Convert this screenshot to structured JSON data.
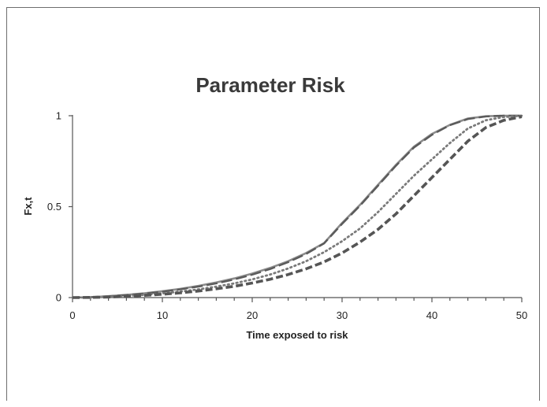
{
  "chart_data": {
    "type": "line",
    "title": "Parameter Risk",
    "xlabel": "Time exposed to risk",
    "ylabel": "Fx,t",
    "xlim": [
      0,
      50
    ],
    "ylim": [
      0,
      1
    ],
    "x_ticks": [
      "0",
      "10",
      "20",
      "30",
      "40",
      "50"
    ],
    "y_ticks": [
      "0",
      "0.5",
      "1"
    ],
    "grid": false,
    "legend": "none",
    "x": [
      0,
      2,
      4,
      6,
      8,
      10,
      12,
      14,
      16,
      18,
      20,
      22,
      24,
      26,
      28,
      30,
      32,
      34,
      36,
      38,
      40,
      42,
      44,
      46,
      48,
      50
    ],
    "series": [
      {
        "style": "solid",
        "color": "#8c8c8c",
        "values": [
          0.0,
          0.002,
          0.008,
          0.015,
          0.024,
          0.035,
          0.048,
          0.064,
          0.083,
          0.105,
          0.132,
          0.163,
          0.2,
          0.245,
          0.3,
          0.41,
          0.51,
          0.62,
          0.73,
          0.83,
          0.9,
          0.95,
          0.985,
          0.997,
          1.0,
          1.0
        ]
      },
      {
        "style": "long-dash",
        "color": "#5a5a5a",
        "values": [
          0.0,
          0.002,
          0.007,
          0.014,
          0.022,
          0.032,
          0.045,
          0.06,
          0.078,
          0.1,
          0.126,
          0.157,
          0.195,
          0.24,
          0.298,
          0.405,
          0.505,
          0.615,
          0.725,
          0.825,
          0.895,
          0.948,
          0.982,
          0.996,
          1.0,
          1.0
        ]
      },
      {
        "style": "dotted",
        "color": "#7a7a7a",
        "values": [
          0.0,
          0.001,
          0.004,
          0.009,
          0.015,
          0.023,
          0.033,
          0.045,
          0.06,
          0.078,
          0.1,
          0.127,
          0.16,
          0.2,
          0.25,
          0.31,
          0.38,
          0.47,
          0.57,
          0.67,
          0.76,
          0.85,
          0.93,
          0.975,
          0.993,
          1.0
        ]
      },
      {
        "style": "dashed",
        "color": "#555555",
        "values": [
          0.0,
          0.001,
          0.003,
          0.007,
          0.012,
          0.018,
          0.026,
          0.036,
          0.048,
          0.062,
          0.08,
          0.101,
          0.127,
          0.158,
          0.196,
          0.245,
          0.305,
          0.375,
          0.46,
          0.56,
          0.66,
          0.76,
          0.86,
          0.935,
          0.975,
          0.995
        ]
      }
    ]
  }
}
